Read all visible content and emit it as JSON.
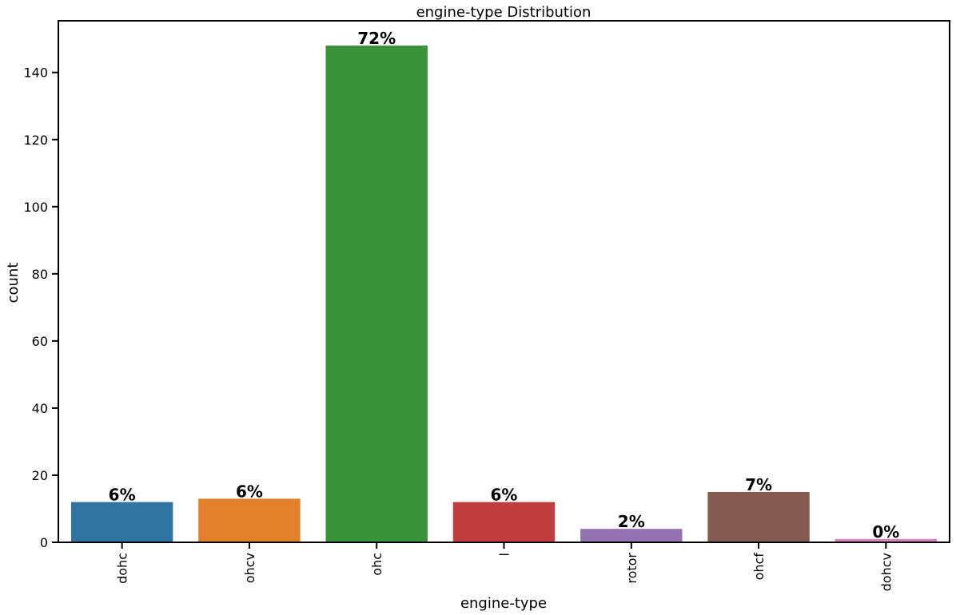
{
  "chart_data": {
    "type": "bar",
    "title": "engine-type Distribution",
    "xlabel": "engine-type",
    "ylabel": "count",
    "categories": [
      "dohc",
      "ohcv",
      "ohc",
      "l",
      "rotor",
      "ohcf",
      "dohcv"
    ],
    "values": [
      12,
      13,
      148,
      12,
      4,
      15,
      1
    ],
    "data_labels": [
      "6%",
      "6%",
      "72%",
      "6%",
      "2%",
      "7%",
      "0%"
    ],
    "colors": [
      "#3274a1",
      "#e1812c",
      "#3a923a",
      "#c03d3e",
      "#9372b2",
      "#845b53",
      "#d684bd"
    ],
    "ylim": [
      0,
      155.4
    ],
    "yticks": [
      0,
      20,
      40,
      60,
      80,
      100,
      120,
      140
    ],
    "grid": false,
    "legend": "none"
  }
}
